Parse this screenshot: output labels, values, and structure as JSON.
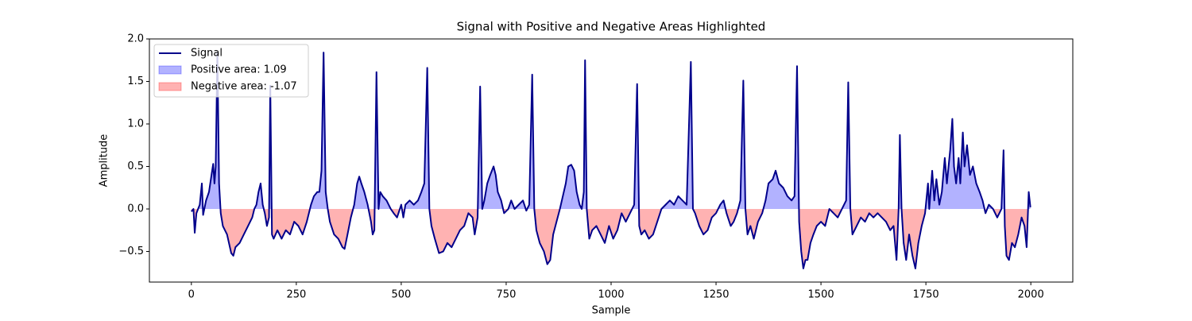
{
  "chart_data": {
    "type": "line",
    "title": "Signal with Positive and Negative Areas Highlighted",
    "x_label": "Sample",
    "y_label": "Amplitude",
    "x": [
      0,
      5,
      8,
      12,
      20,
      25,
      28,
      35,
      42,
      48,
      52,
      55,
      58,
      62,
      66,
      70,
      75,
      85,
      95,
      100,
      105,
      115,
      125,
      135,
      145,
      150,
      155,
      160,
      165,
      170,
      175,
      180,
      185,
      188,
      192,
      196,
      205,
      215,
      225,
      235,
      245,
      255,
      265,
      275,
      285,
      292,
      300,
      305,
      310,
      315,
      320,
      325,
      330,
      340,
      350,
      360,
      365,
      372,
      380,
      388,
      395,
      400,
      405,
      412,
      420,
      428,
      432,
      436,
      441,
      446,
      450,
      456,
      465,
      475,
      482,
      490,
      500,
      505,
      510,
      520,
      530,
      540,
      548,
      555,
      562,
      567,
      572,
      580,
      590,
      600,
      610,
      620,
      630,
      640,
      650,
      660,
      670,
      675,
      682,
      688,
      693,
      698,
      705,
      712,
      720,
      725,
      730,
      738,
      745,
      755,
      762,
      770,
      780,
      790,
      798,
      805,
      812,
      817,
      822,
      830,
      840,
      848,
      855,
      862,
      870,
      878,
      885,
      892,
      898,
      905,
      912,
      918,
      925,
      930,
      935,
      938,
      942,
      948,
      955,
      965,
      975,
      985,
      995,
      1005,
      1015,
      1025,
      1035,
      1045,
      1055,
      1062,
      1067,
      1072,
      1080,
      1090,
      1100,
      1110,
      1120,
      1130,
      1140,
      1150,
      1160,
      1170,
      1180,
      1190,
      1195,
      1200,
      1210,
      1220,
      1230,
      1240,
      1250,
      1260,
      1268,
      1275,
      1285,
      1292,
      1300,
      1308,
      1315,
      1320,
      1325,
      1332,
      1340,
      1350,
      1360,
      1368,
      1375,
      1385,
      1392,
      1400,
      1410,
      1420,
      1430,
      1437,
      1443,
      1448,
      1453,
      1458,
      1463,
      1468,
      1475,
      1482,
      1490,
      1500,
      1510,
      1520,
      1530,
      1540,
      1550,
      1560,
      1565,
      1570,
      1575,
      1585,
      1595,
      1605,
      1615,
      1625,
      1635,
      1645,
      1655,
      1665,
      1673,
      1680,
      1685,
      1688,
      1692,
      1697,
      1703,
      1710,
      1718,
      1725,
      1732,
      1740,
      1748,
      1755,
      1758,
      1765,
      1770,
      1775,
      1782,
      1788,
      1795,
      1800,
      1808,
      1813,
      1817,
      1822,
      1828,
      1832,
      1838,
      1842,
      1848,
      1855,
      1862,
      1870,
      1878,
      1885,
      1892,
      1900,
      1910,
      1920,
      1930,
      1935,
      1938,
      1942,
      1948,
      1955,
      1962,
      1970,
      1978,
      1985,
      1990,
      1995,
      1999
    ],
    "series": [
      {
        "name": "Signal",
        "color": "#00008b",
        "values": [
          -0.03,
          0.0,
          -0.28,
          -0.05,
          0.05,
          0.3,
          -0.07,
          0.1,
          0.2,
          0.4,
          0.53,
          0.3,
          0.5,
          1.84,
          0.3,
          -0.05,
          -0.2,
          -0.3,
          -0.52,
          -0.55,
          -0.45,
          -0.4,
          -0.3,
          -0.2,
          -0.1,
          0.0,
          0.05,
          0.2,
          0.3,
          0.05,
          -0.05,
          -0.2,
          -0.1,
          1.45,
          -0.3,
          -0.35,
          -0.25,
          -0.35,
          -0.25,
          -0.3,
          -0.15,
          -0.2,
          -0.3,
          -0.15,
          0.05,
          0.15,
          0.2,
          0.2,
          0.45,
          1.84,
          0.2,
          0.0,
          -0.15,
          -0.3,
          -0.35,
          -0.45,
          -0.47,
          -0.3,
          -0.1,
          0.05,
          0.3,
          0.38,
          0.3,
          0.2,
          0.05,
          -0.15,
          -0.3,
          -0.25,
          1.61,
          0.0,
          0.2,
          0.15,
          0.1,
          0.0,
          -0.05,
          -0.1,
          0.05,
          -0.1,
          0.05,
          0.1,
          0.05,
          0.1,
          0.2,
          0.3,
          1.66,
          0.0,
          -0.2,
          -0.35,
          -0.52,
          -0.5,
          -0.4,
          -0.45,
          -0.35,
          -0.25,
          -0.2,
          -0.05,
          -0.1,
          -0.3,
          -0.1,
          1.44,
          0.0,
          0.1,
          0.3,
          0.4,
          0.5,
          0.4,
          0.2,
          0.1,
          -0.05,
          0.0,
          0.1,
          0.0,
          0.05,
          0.1,
          -0.02,
          0.05,
          1.58,
          0.0,
          -0.25,
          -0.4,
          -0.5,
          -0.65,
          -0.6,
          -0.3,
          -0.15,
          0.0,
          0.15,
          0.3,
          0.5,
          0.52,
          0.45,
          0.2,
          0.05,
          0.0,
          0.2,
          1.75,
          0.0,
          -0.35,
          -0.25,
          -0.2,
          -0.3,
          -0.4,
          -0.2,
          -0.35,
          -0.25,
          -0.05,
          -0.15,
          -0.05,
          0.05,
          1.47,
          -0.2,
          -0.3,
          -0.25,
          -0.35,
          -0.3,
          -0.15,
          0.0,
          0.05,
          0.1,
          0.05,
          0.15,
          0.1,
          0.05,
          1.73,
          0.0,
          -0.05,
          -0.2,
          -0.3,
          -0.25,
          -0.1,
          -0.05,
          0.05,
          0.1,
          -0.05,
          -0.2,
          -0.15,
          -0.05,
          0.1,
          1.51,
          0.0,
          -0.3,
          -0.2,
          -0.35,
          -0.15,
          -0.05,
          0.1,
          0.3,
          0.35,
          0.45,
          0.3,
          0.25,
          0.15,
          0.1,
          0.15,
          1.68,
          -0.15,
          -0.5,
          -0.7,
          -0.6,
          -0.6,
          -0.4,
          -0.3,
          -0.2,
          -0.15,
          -0.2,
          0.0,
          -0.05,
          -0.1,
          0.0,
          0.1,
          1.49,
          0.0,
          -0.3,
          -0.2,
          -0.1,
          -0.15,
          -0.05,
          -0.1,
          -0.05,
          -0.1,
          -0.15,
          -0.25,
          -0.2,
          -0.6,
          0.0,
          0.87,
          0.0,
          -0.4,
          -0.6,
          -0.3,
          -0.55,
          -0.7,
          -0.4,
          -0.2,
          -0.05,
          0.3,
          0.0,
          0.45,
          0.1,
          0.35,
          0.05,
          0.2,
          0.6,
          0.3,
          0.7,
          1.06,
          0.5,
          0.3,
          0.6,
          0.3,
          0.9,
          0.5,
          0.75,
          0.4,
          0.5,
          0.3,
          0.2,
          0.1,
          -0.05,
          0.05,
          0.0,
          -0.1,
          0.0,
          0.69,
          -0.2,
          -0.55,
          -0.6,
          -0.4,
          -0.45,
          -0.3,
          -0.1,
          -0.2,
          -0.45,
          0.2,
          0.02
        ]
      }
    ],
    "fills": [
      {
        "name": "Positive area: 1.09",
        "color": "#0000ff"
      },
      {
        "name": "Negative area: -1.07",
        "color": "#ff0000"
      }
    ],
    "xlim": [
      -100,
      2100
    ],
    "xticks": [
      0,
      250,
      500,
      750,
      1000,
      1250,
      1500,
      1750,
      2000
    ],
    "ylim": [
      -0.86,
      2.0
    ],
    "yticks": [
      {
        "value": -0.5,
        "label": "−0.5"
      },
      {
        "value": 0,
        "label": "0.0"
      },
      0.5,
      {
        "value": 1,
        "label": "1.0"
      },
      1.5,
      {
        "value": 2,
        "label": "2.0"
      }
    ],
    "legend": "upper left"
  }
}
